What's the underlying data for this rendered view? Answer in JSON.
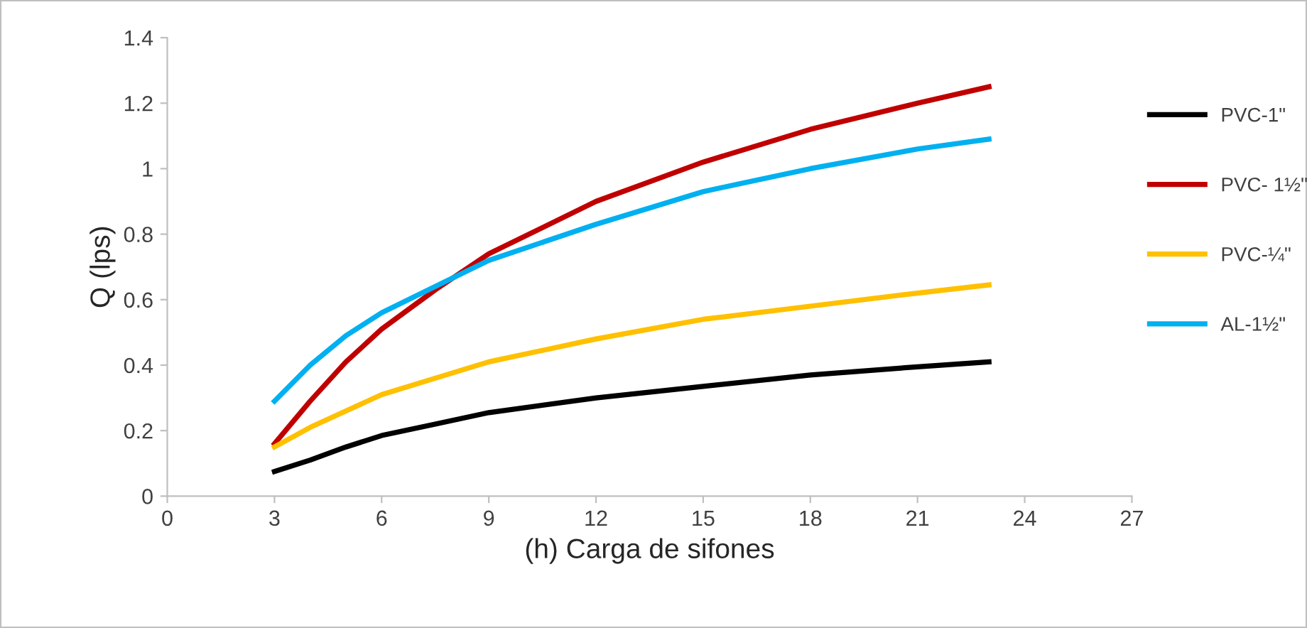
{
  "chart_data": {
    "type": "line",
    "xlabel": "(h) Carga de sifones",
    "ylabel": "Q (lps)",
    "xlim": [
      0,
      27
    ],
    "xticks": [
      0,
      3,
      6,
      9,
      12,
      15,
      18,
      21,
      24,
      27
    ],
    "ylim": [
      0,
      1.4
    ],
    "yticks": [
      0,
      0.2,
      0.4,
      0.6,
      0.8,
      1,
      1.2,
      1.4
    ],
    "grid": false,
    "legend": "right",
    "marker": "none",
    "line_style": "solid",
    "x": [
      3,
      4,
      5,
      6,
      7.5,
      9,
      12,
      15,
      18,
      21,
      23
    ],
    "series": [
      {
        "name": "PVC-1\"",
        "color": "#000000",
        "values": [
          0.075,
          0.11,
          0.15,
          0.185,
          0.22,
          0.255,
          0.3,
          0.335,
          0.37,
          0.395,
          0.41
        ]
      },
      {
        "name": "PVC- 1½\"",
        "color": "#c00000",
        "values": [
          0.16,
          0.29,
          0.41,
          0.51,
          0.63,
          0.74,
          0.9,
          1.02,
          1.12,
          1.2,
          1.25
        ]
      },
      {
        "name": "PVC-¼\"",
        "color": "#ffc000",
        "values": [
          0.15,
          0.21,
          0.26,
          0.31,
          0.36,
          0.41,
          0.48,
          0.54,
          0.58,
          0.62,
          0.645
        ]
      },
      {
        "name": "AL-1½\"",
        "color": "#00b0f0",
        "values": [
          0.29,
          0.4,
          0.49,
          0.56,
          0.64,
          0.72,
          0.83,
          0.93,
          1.0,
          1.06,
          1.09
        ]
      }
    ]
  }
}
